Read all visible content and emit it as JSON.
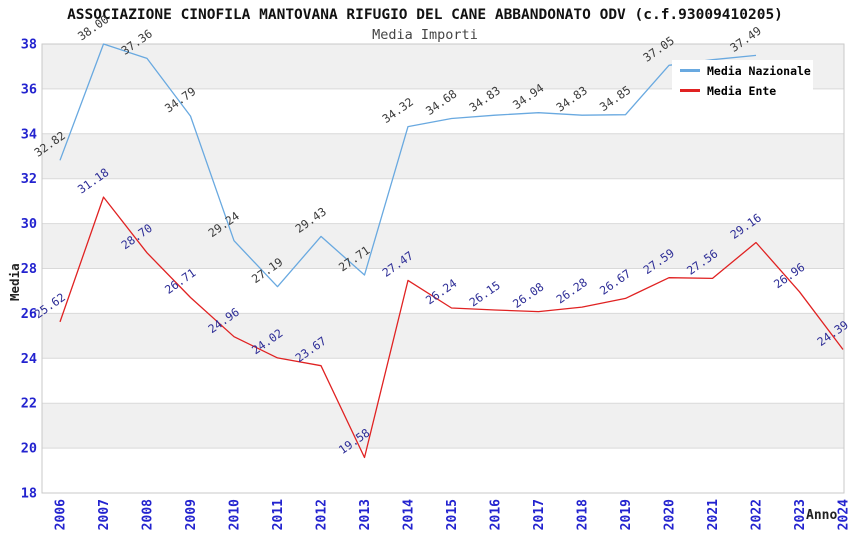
{
  "title": "ASSOCIAZIONE CINOFILA MANTOVANA RIFUGIO DEL CANE ABBANDONATO ODV (c.f.93009410205)",
  "subtitle": "Media Importi",
  "axes": {
    "y_label": "Media",
    "x_label": "Anno"
  },
  "colors": {
    "band_fill": "#f0f0f0",
    "gridline": "#d9d9d9",
    "plot_border": "#c9c9c9",
    "tick_label_blue": "#2323cf",
    "nazionale_line": "#69a9e0",
    "ente_line": "#e02222",
    "nazionale_label": "#3a3a3a",
    "ente_label": "#2d2d96"
  },
  "chart_data": {
    "type": "line",
    "title": "Media Importi",
    "xlabel": "Anno",
    "ylabel": "Media",
    "x": [
      "2006",
      "2007",
      "2008",
      "2009",
      "2010",
      "2011",
      "2012",
      "2013",
      "2014",
      "2015",
      "2016",
      "2017",
      "2018",
      "2019",
      "2020",
      "2021",
      "2022",
      "2023",
      "2024"
    ],
    "ylim": [
      18,
      38
    ],
    "y_ticks": [
      18,
      20,
      22,
      24,
      26,
      28,
      30,
      32,
      34,
      36,
      38
    ],
    "grid": "horizontal-bands-alternating",
    "legend_position": "top-right-inside",
    "series": [
      {
        "name": "Media Nazionale",
        "color": "#69a9e0",
        "label_color": "#3a3a3a",
        "values": [
          32.82,
          38.0,
          37.36,
          34.79,
          29.24,
          27.19,
          29.43,
          27.71,
          34.32,
          34.68,
          34.83,
          34.94,
          34.83,
          34.85,
          37.05,
          37.3,
          37.49,
          null,
          null
        ],
        "label_hidden_x": [
          "2021"
        ]
      },
      {
        "name": "Media Ente",
        "color": "#e02222",
        "label_color": "#2d2d96",
        "values": [
          25.62,
          31.18,
          28.7,
          26.71,
          24.96,
          24.02,
          23.67,
          19.58,
          27.47,
          26.24,
          26.15,
          26.08,
          26.28,
          26.67,
          27.59,
          27.56,
          29.16,
          26.96,
          24.39
        ],
        "label_hidden_x": []
      }
    ]
  }
}
